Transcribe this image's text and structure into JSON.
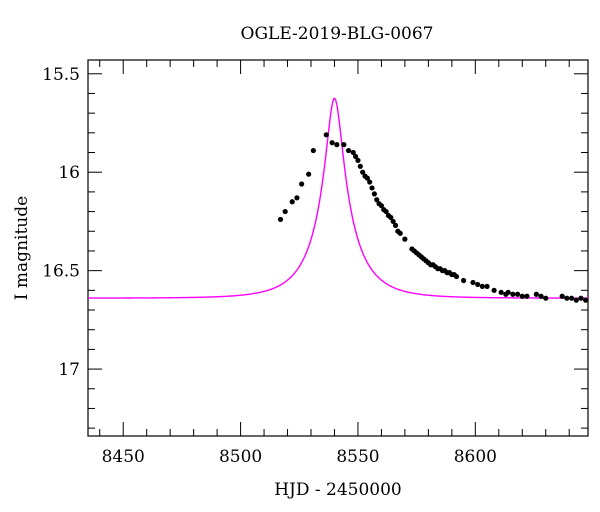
{
  "chart_data": {
    "type": "scatter",
    "title": "OGLE-2019-BLG-0067",
    "xlabel": "HJD - 2450000",
    "ylabel": "I magnitude",
    "xlim": [
      8435,
      8648
    ],
    "ylim": [
      17.34,
      15.43
    ],
    "y_inverted": true,
    "grid": false,
    "x_ticks": [
      8450,
      8500,
      8550,
      8600
    ],
    "y_ticks": [
      15.5,
      16,
      16.5,
      17
    ],
    "y_tick_labels": [
      "15.5",
      "16",
      "16.5",
      "17"
    ],
    "model_color": "#ff00ff",
    "point_color": "#000000",
    "series": [
      {
        "type": "scatter",
        "x": [
          8517,
          8519,
          8522,
          8524,
          8526,
          8529,
          8531,
          8536.5,
          8539,
          8541,
          8544,
          8546,
          8548,
          8549,
          8550,
          8551,
          8552,
          8553,
          8554,
          8555,
          8556,
          8557,
          8558,
          8559,
          8560,
          8561,
          8562,
          8563,
          8564,
          8565,
          8566,
          8567,
          8568,
          8570,
          8573,
          8574,
          8575,
          8576,
          8577,
          8578,
          8579,
          8580,
          8581,
          8582,
          8583,
          8584,
          8585,
          8586,
          8587,
          8588,
          8589,
          8590,
          8591,
          8592,
          8595,
          8599,
          8601,
          8603,
          8605,
          8608,
          8611,
          8613,
          8614,
          8616,
          8618,
          8620,
          8622,
          8626,
          8628,
          8630,
          8637,
          8639,
          8641,
          8643,
          8645,
          8647
        ],
        "y": [
          16.24,
          16.2,
          16.15,
          16.13,
          16.06,
          16.01,
          15.89,
          15.81,
          15.85,
          15.86,
          15.86,
          15.89,
          15.9,
          15.92,
          15.94,
          15.97,
          16.0,
          16.02,
          16.03,
          16.05,
          16.08,
          16.11,
          16.14,
          16.16,
          16.17,
          16.19,
          16.2,
          16.22,
          16.23,
          16.25,
          16.27,
          16.3,
          16.31,
          16.34,
          16.39,
          16.4,
          16.41,
          16.42,
          16.43,
          16.44,
          16.45,
          16.46,
          16.47,
          16.47,
          16.48,
          16.49,
          16.49,
          16.5,
          16.5,
          16.51,
          16.51,
          16.52,
          16.52,
          16.53,
          16.55,
          16.56,
          16.57,
          16.58,
          16.58,
          16.6,
          16.61,
          16.62,
          16.61,
          16.62,
          16.62,
          16.63,
          16.63,
          16.62,
          16.63,
          16.64,
          16.63,
          16.64,
          16.64,
          16.65,
          16.64,
          16.65
        ]
      },
      {
        "type": "line",
        "model": "microlensing",
        "t0": 8540,
        "tE": 17,
        "u0": 0.2,
        "I_base": 16.64,
        "f_source": 0.38,
        "x_range": [
          8435,
          8648
        ]
      }
    ]
  }
}
